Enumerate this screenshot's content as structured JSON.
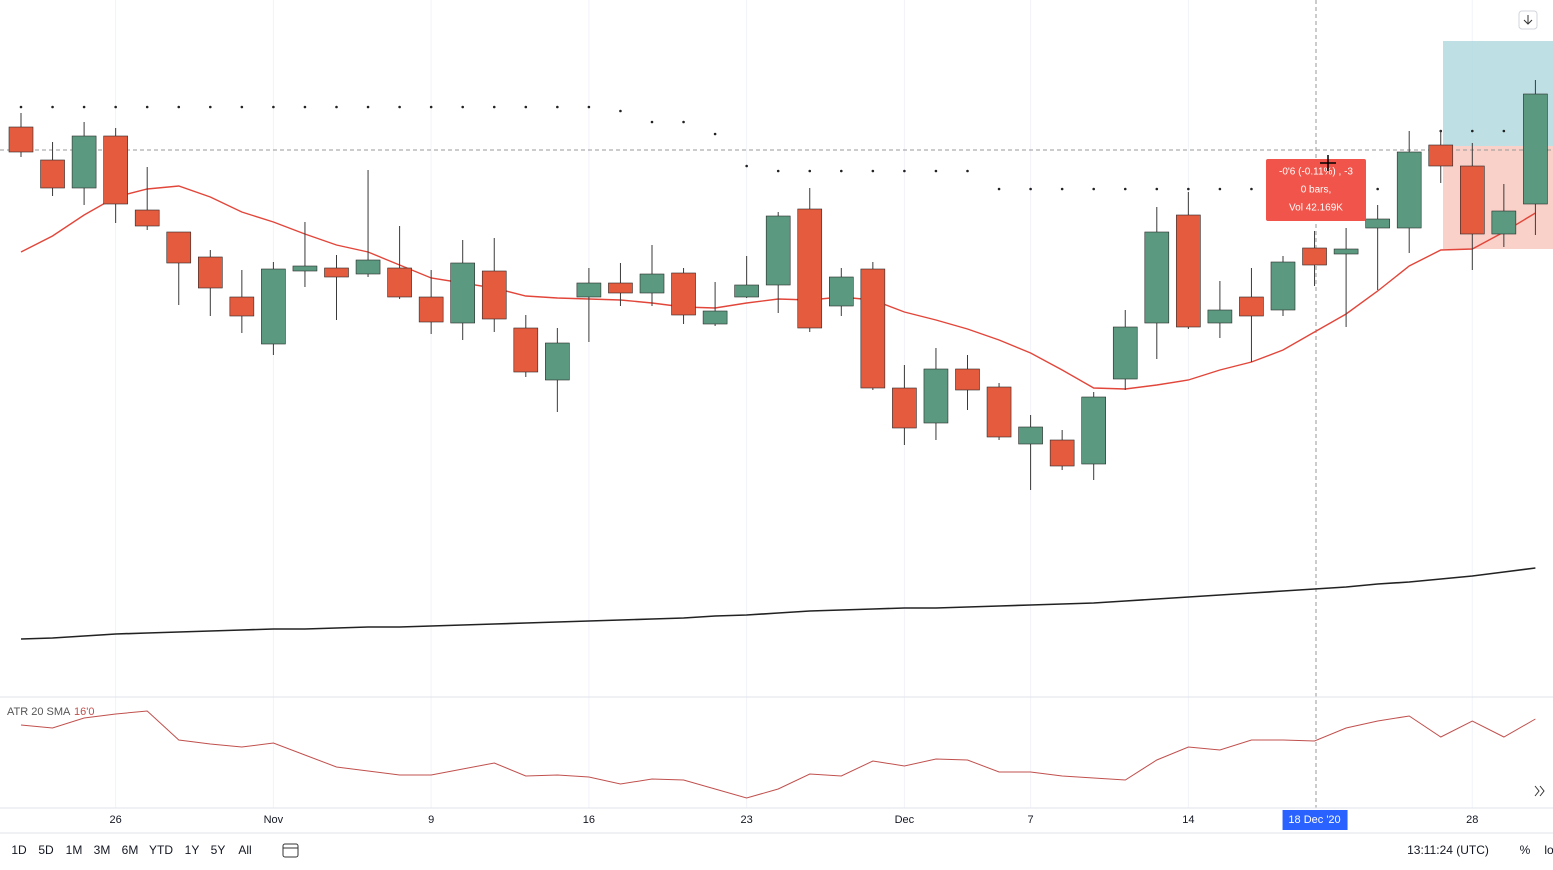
{
  "chart_data": {
    "type": "candlestick",
    "categories": [
      null,
      null,
      null,
      "26",
      null,
      null,
      null,
      null,
      "Nov",
      null,
      null,
      null,
      null,
      "9",
      null,
      null,
      null,
      null,
      "16",
      null,
      null,
      null,
      null,
      "23",
      null,
      null,
      null,
      null,
      "Dec",
      null,
      null,
      null,
      "7",
      null,
      null,
      null,
      null,
      "14",
      null,
      null,
      null,
      "18 Dec '20",
      null,
      null,
      null,
      null,
      "28",
      null,
      null
    ],
    "highlight_category_index": 41,
    "open": [
      57.3,
      54.0,
      51.2,
      56.4,
      49.0,
      46.8,
      44.3,
      40.3,
      35.6,
      42.9,
      43.2,
      42.6,
      43.2,
      40.3,
      37.7,
      42.9,
      37.2,
      32.0,
      40.3,
      41.7,
      40.7,
      42.7,
      37.6,
      40.3,
      41.5,
      49.1,
      39.4,
      43.1,
      31.2,
      27.7,
      33.1,
      31.3,
      25.6,
      26.0,
      23.6,
      32.1,
      37.7,
      48.5,
      37.7,
      40.3,
      39.0,
      45.2,
      44.6,
      47.2,
      47.2,
      55.5,
      53.4,
      46.6,
      49.6
    ],
    "high": [
      58.7,
      55.8,
      57.8,
      57.2,
      53.3,
      46.8,
      45.0,
      43.0,
      43.8,
      47.8,
      44.5,
      53.0,
      47.4,
      43.0,
      46.0,
      46.2,
      38.5,
      37.2,
      43.2,
      43.7,
      45.5,
      43.2,
      41.8,
      44.4,
      48.8,
      51.2,
      43.2,
      43.8,
      33.5,
      35.2,
      34.5,
      31.7,
      28.5,
      27.0,
      30.8,
      39.0,
      49.3,
      50.8,
      41.9,
      43.2,
      44.4,
      46.9,
      47.2,
      49.5,
      56.9,
      57.0,
      55.7,
      51.6,
      62.0
    ],
    "low": [
      54.3,
      50.4,
      49.5,
      47.7,
      47.0,
      39.5,
      38.4,
      36.7,
      34.5,
      41.3,
      38.0,
      42.3,
      40.1,
      36.6,
      36.0,
      36.8,
      32.3,
      28.8,
      35.8,
      39.4,
      39.4,
      37.6,
      37.4,
      40.2,
      38.7,
      36.8,
      38.4,
      31.0,
      25.5,
      26.0,
      29.0,
      26.0,
      21.0,
      23.0,
      22.0,
      31.0,
      34.1,
      37.1,
      36.2,
      33.8,
      38.4,
      41.4,
      37.3,
      41.0,
      44.7,
      51.7,
      43.0,
      45.3,
      46.5
    ],
    "close": [
      54.8,
      51.2,
      56.4,
      49.6,
      47.4,
      43.7,
      41.2,
      38.4,
      43.1,
      43.4,
      42.3,
      44.0,
      40.3,
      37.8,
      43.7,
      38.1,
      32.8,
      35.7,
      41.7,
      40.7,
      42.6,
      38.5,
      38.9,
      41.5,
      48.4,
      37.2,
      42.3,
      31.2,
      27.2,
      33.1,
      31.0,
      26.3,
      27.3,
      23.4,
      30.3,
      37.3,
      46.8,
      37.3,
      39.0,
      38.4,
      43.8,
      43.5,
      45.1,
      48.1,
      54.8,
      53.4,
      46.6,
      48.9,
      60.6
    ],
    "up_color": "#5b9a80",
    "down_color": "#e45b3e",
    "wick_color": "#3a3a3a",
    "ylim": [
      0,
      70
    ],
    "overlays": [
      {
        "style": "line",
        "color": "#e2463a",
        "values": [
          44.8,
          46.4,
          48.5,
          50.3,
          51.1,
          51.4,
          50.3,
          48.8,
          47.8,
          46.6,
          45.5,
          44.8,
          43.5,
          42.2,
          41.7,
          41.2,
          40.4,
          40.2,
          40.1,
          40.0,
          39.7,
          39.3,
          39.2,
          39.7,
          40.1,
          40.0,
          40.3,
          40.0,
          38.8,
          38.0,
          37.1,
          36.0,
          34.7,
          33.0,
          31.2,
          31.1,
          31.5,
          32.0,
          33.0,
          33.8,
          35.0,
          36.8,
          38.6,
          40.9,
          43.4,
          45.0,
          45.1,
          46.8,
          48.7
        ]
      },
      {
        "style": "line",
        "color": "#222222",
        "values": [
          6.1,
          6.2,
          6.4,
          6.6,
          6.7,
          6.8,
          6.9,
          7.0,
          7.1,
          7.1,
          7.2,
          7.3,
          7.3,
          7.4,
          7.5,
          7.6,
          7.7,
          7.8,
          7.9,
          8.0,
          8.1,
          8.2,
          8.4,
          8.5,
          8.7,
          8.9,
          9.0,
          9.1,
          9.2,
          9.2,
          9.3,
          9.4,
          9.5,
          9.6,
          9.7,
          9.9,
          10.1,
          10.3,
          10.5,
          10.7,
          10.9,
          11.1,
          11.3,
          11.6,
          11.8,
          12.1,
          12.4,
          12.8,
          13.2
        ]
      },
      {
        "style": "dots",
        "color": "#222222",
        "values": [
          59.3,
          59.3,
          59.3,
          59.3,
          59.3,
          59.3,
          59.3,
          59.3,
          59.3,
          59.3,
          59.3,
          59.3,
          59.3,
          59.3,
          59.3,
          59.3,
          59.3,
          59.3,
          59.3,
          58.9,
          57.8,
          57.8,
          56.6,
          53.4,
          52.9,
          52.9,
          52.9,
          52.9,
          52.9,
          52.9,
          52.9,
          51.1,
          51.1,
          51.1,
          51.1,
          51.1,
          51.1,
          51.1,
          51.1,
          51.1,
          null,
          null,
          null,
          51.1,
          null,
          56.9,
          56.9,
          56.9,
          56.9
        ]
      }
    ],
    "indicator": {
      "title": "ATR 20 SMA",
      "last_label": "16'0",
      "color": "#c0504d",
      "ylim": [
        0,
        10
      ],
      "values": [
        7.5,
        7.2,
        8.2,
        8.6,
        8.9,
        6.0,
        5.6,
        5.3,
        5.7,
        4.5,
        3.3,
        2.9,
        2.5,
        2.5,
        3.1,
        3.7,
        2.4,
        2.5,
        2.3,
        1.6,
        2.1,
        2.0,
        1.1,
        0.2,
        1.1,
        2.6,
        2.4,
        3.9,
        3.4,
        4.1,
        4.0,
        2.8,
        2.8,
        2.4,
        2.2,
        2.0,
        4.0,
        5.3,
        5.0,
        6.0,
        6.0,
        5.9,
        7.2,
        7.9,
        8.4,
        6.3,
        7.9,
        6.3,
        8.1
      ]
    }
  },
  "measure_tooltip": {
    "lines": [
      "-0'6 (-0.11%) , -3",
      "0 bars,",
      "Vol 42.169K"
    ]
  },
  "toolbar": {
    "ranges": [
      "1D",
      "5D",
      "1M",
      "3M",
      "6M",
      "YTD",
      "1Y",
      "5Y",
      "All"
    ],
    "clock": "13:11:24 (UTC)",
    "right": [
      "%",
      "lo"
    ]
  }
}
